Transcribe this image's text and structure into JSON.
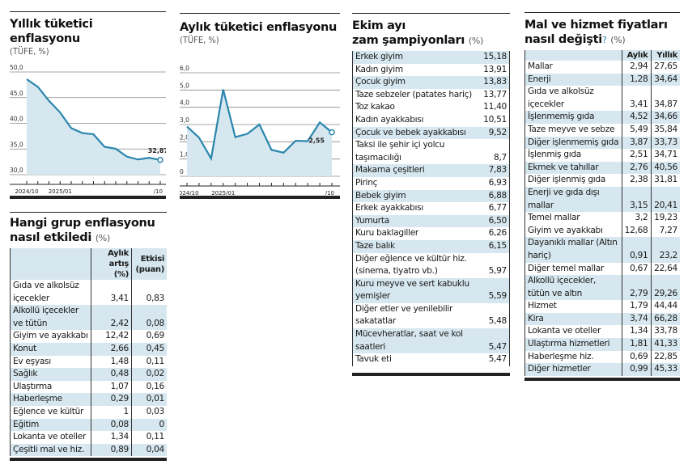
{
  "chart_data": [
    {
      "type": "area",
      "title": "Yıllık tüketici enflasyonu",
      "subtitle": "(TÜFE, %)",
      "x": [
        "2024/10",
        "2024/11",
        "2024/12",
        "2025/01",
        "2025/02",
        "2025/03",
        "2025/04",
        "2025/05",
        "2025/06",
        "2025/07",
        "2025/08",
        "2025/09",
        "2025/10"
      ],
      "x_tick_labels": [
        "2024/10",
        "2025/01",
        "/10"
      ],
      "values": [
        48.58,
        47.09,
        44.38,
        42.12,
        39.05,
        38.1,
        37.86,
        35.41,
        35.05,
        33.52,
        32.95,
        33.29,
        32.87
      ],
      "last_label": "32,87",
      "ylim": [
        30,
        50
      ],
      "y_ticks": [
        "30,0",
        "35,0",
        "40,0",
        "45,0",
        "50,0"
      ],
      "grid": true,
      "line_color": "#2a86ad",
      "fill_color": "#d6e7ef"
    },
    {
      "type": "area",
      "title": "Aylık tüketici enflasyonu",
      "subtitle": "(TÜFE, %)",
      "x": [
        "2024/10",
        "2024/11",
        "2024/12",
        "2025/01",
        "2025/02",
        "2025/03",
        "2025/04",
        "2025/05",
        "2025/06",
        "2025/07",
        "2025/08",
        "2025/09",
        "2025/10"
      ],
      "x_tick_labels": [
        "2024/10",
        "2025/01",
        "/10"
      ],
      "values": [
        2.88,
        2.24,
        1.03,
        5.03,
        2.27,
        2.46,
        3.0,
        1.53,
        1.37,
        2.06,
        2.04,
        3.12,
        2.55
      ],
      "last_label": "2,55",
      "ylim": [
        0,
        6
      ],
      "y_ticks": [
        "0",
        "1,0",
        "2,0",
        "3,0",
        "4,0",
        "5,0",
        "6,0"
      ],
      "grid": true,
      "line_color": "#2a86ad",
      "fill_color": "#d6e7ef"
    }
  ],
  "groups": {
    "title": "Hangi grup enflasyonu nasıl etkiledi",
    "unit": "(%)",
    "col1": "Aylık artış (%)",
    "col2": "Etkisi (puan)",
    "rows": [
      [
        "Gıda ve alkolsüz içecekler",
        "3,41",
        "0,83"
      ],
      [
        "Alkollü içecekler ve tütün",
        "2,42",
        "0,08"
      ],
      [
        "Giyim ve ayakkabı",
        "12,42",
        "0,69"
      ],
      [
        "Konut",
        "2,66",
        "0,45"
      ],
      [
        "Ev eşyası",
        "1,48",
        "0,11"
      ],
      [
        "Sağlık",
        "0,48",
        "0,02"
      ],
      [
        "Ulaştırma",
        "1,07",
        "0,16"
      ],
      [
        "Haberleşme",
        "0,29",
        "0,01"
      ],
      [
        "Eğlence ve kültür",
        "1",
        "0,03"
      ],
      [
        "Eğitim",
        "0,08",
        "0"
      ],
      [
        "Lokanta ve oteller",
        "1,34",
        "0,11"
      ],
      [
        "Çeşitli mal ve hiz.",
        "0,89",
        "0,04"
      ]
    ]
  },
  "champions": {
    "title_line1": "Ekim ayı",
    "title_line2": "zam şampiyonları",
    "unit": "(%)",
    "rows": [
      [
        "Erkek giyim",
        "15,18",
        1
      ],
      [
        "Kadın giyim",
        "13,91",
        0
      ],
      [
        "Çocuk giyim",
        "13,83",
        1
      ],
      [
        "Taze sebzeler (patates hariç)",
        "13,77",
        0
      ],
      [
        "Toz kakao",
        "11,40",
        0
      ],
      [
        "Kadın ayakkabısı",
        "10,51",
        0
      ],
      [
        "Çocuk ve bebek ayakkabısı",
        "9,52",
        1
      ],
      [
        "Taksi ile şehir içi yolcu taşımacılığı",
        "8,7",
        0
      ],
      [
        "Makarna çeşitleri",
        "7,83",
        1
      ],
      [
        "Pirinç",
        "6,93",
        0
      ],
      [
        "Bebek giyim",
        "6,88",
        1
      ],
      [
        "Erkek ayakkabısı",
        "6,77",
        0
      ],
      [
        "Yumurta",
        "6,50",
        1
      ],
      [
        "Kuru baklagiller",
        "6,26",
        0
      ],
      [
        "Taze balık",
        "6,15",
        1
      ],
      [
        "Diğer eğlence ve kültür hiz. (sinema, tiyatro vb.)",
        "5,97",
        0
      ],
      [
        "Kuru meyve ve sert kabuklu yemişler",
        "5,59",
        1
      ],
      [
        "Diğer etler ve yenilebilir sakatatlar",
        "5,48",
        0
      ],
      [
        "Mücevheratlar, saat ve kol saatleri",
        "5,47",
        1
      ],
      [
        "Tavuk eti",
        "5,47",
        0
      ]
    ]
  },
  "prices": {
    "title_line1": "Mal ve hizmet fiyatları",
    "title_line2": "nasıl değişti",
    "qmark": "?",
    "unit": "(%)",
    "col1": "Aylık",
    "col2": "Yıllık",
    "rows": [
      [
        "Mallar",
        "2,94",
        "27,65",
        0
      ],
      [
        "Enerji",
        "1,28",
        "34,64",
        1
      ],
      [
        "Gıda ve alkolsüz içecekler",
        "3,41",
        "34,87",
        0
      ],
      [
        "İşlenmemiş gıda",
        "4,52",
        "34,66",
        1
      ],
      [
        "Taze meyve ve sebze",
        "5,49",
        "35,84",
        0
      ],
      [
        "Diğer işlenmemiş gıda",
        "3,87",
        "33,73",
        1
      ],
      [
        "İşlenmiş gıda",
        "2,51",
        "34,71",
        0
      ],
      [
        "Ekmek ve tahıllar",
        "2,76",
        "40,56",
        1
      ],
      [
        "Diğer işlenmiş gıda",
        "2,38",
        "31,81",
        0
      ],
      [
        "Enerji ve gıda dışı mallar",
        "3,15",
        "20,41",
        1
      ],
      [
        "Temel mallar",
        "3,2",
        "19,23",
        0
      ],
      [
        "Giyim ve ayakkabı",
        "12,68",
        "7,27",
        0
      ],
      [
        "Dayanıklı mallar (Altın hariç)",
        "0,91",
        "23,2",
        1
      ],
      [
        "Diğer temel mallar",
        "0,67",
        "22,64",
        0
      ],
      [
        "Alkollü içecekler, tütün ve altın",
        "2,79",
        "29,26",
        1
      ],
      [
        "Hizmet",
        "1,79",
        "44,44",
        0
      ],
      [
        "Kira",
        "3,74",
        "66,28",
        1
      ],
      [
        "Lokanta ve oteller",
        "1,34",
        "33,78",
        0
      ],
      [
        "Ulaştırma hizmetleri",
        "1,81",
        "41,33",
        1
      ],
      [
        "Haberleşme hiz.",
        "0,69",
        "22,85",
        0
      ],
      [
        "Diğer hizmetler",
        "0,99",
        "45,33",
        1
      ]
    ]
  }
}
